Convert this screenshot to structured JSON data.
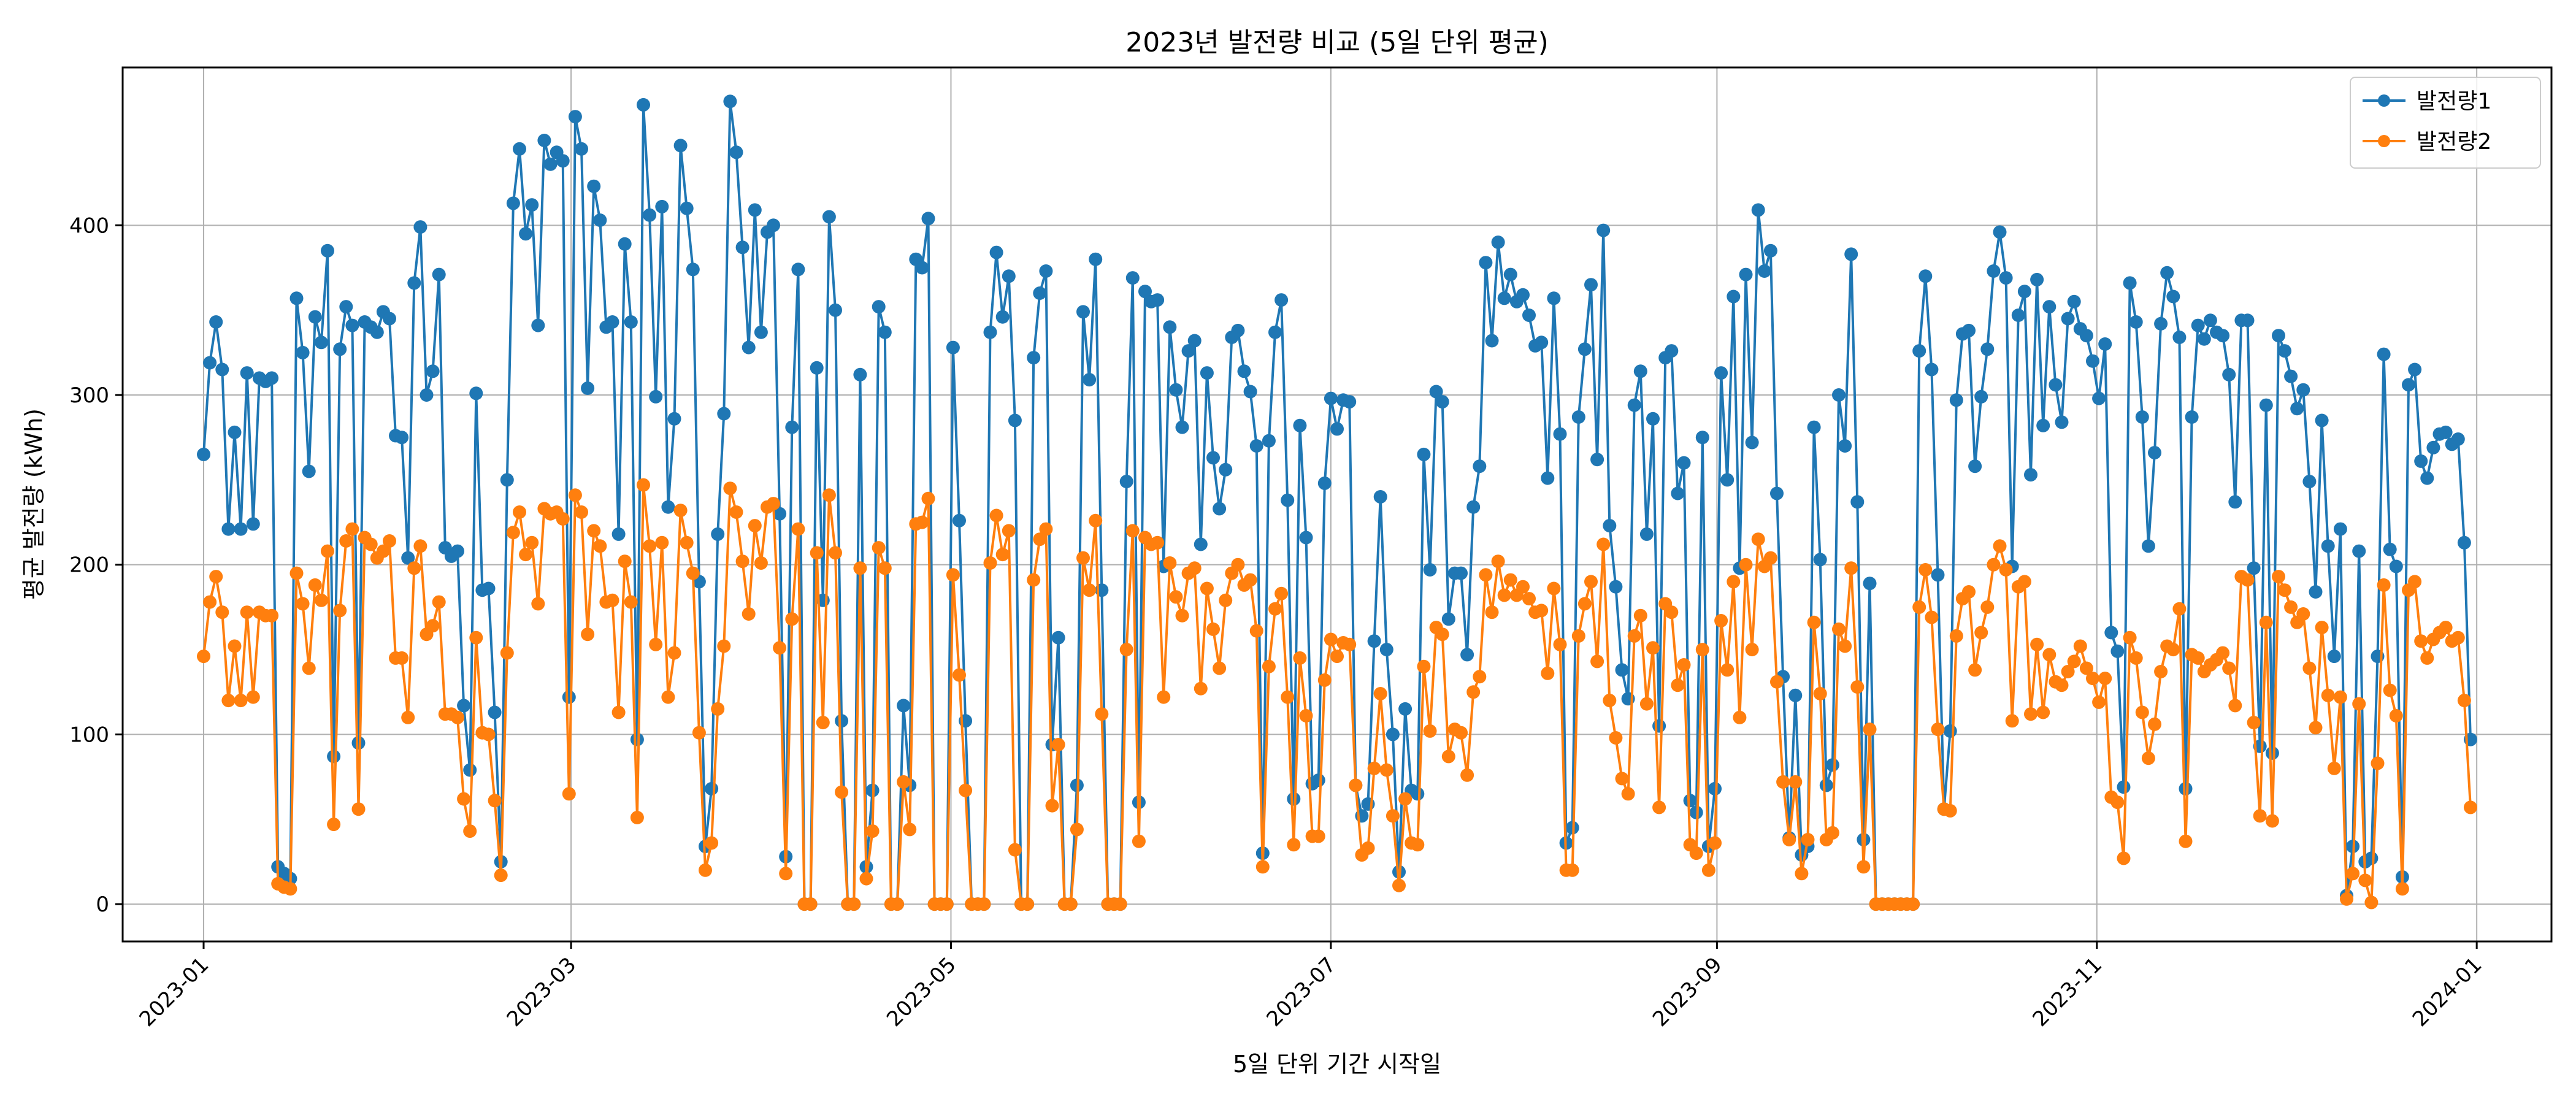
{
  "chart_data": {
    "type": "line",
    "title": "2023년 발전량 비교 (5일 단위 평균)",
    "xlabel": "5일 단위 기간 시작일",
    "ylabel": "평균 발전량 (kWh)",
    "x_start": "2023-01-01",
    "x_end": "2023-12-31",
    "xlim": [
      "2022-12-19",
      "2024-01-13"
    ],
    "ylim": [
      -22,
      493
    ],
    "x_ticks": [
      "2023-01",
      "2023-03",
      "2023-05",
      "2023-07",
      "2023-09",
      "2023-11",
      "2024-01"
    ],
    "y_ticks": [
      0,
      100,
      200,
      300,
      400
    ],
    "grid": true,
    "legend": "top-right",
    "series": [
      {
        "name": "발전량1",
        "color": "#1f77b4",
        "values": [
          265,
          319,
          343,
          315,
          221,
          278,
          221,
          313,
          224,
          310,
          308,
          310,
          22,
          18,
          15,
          357,
          325,
          255,
          346,
          331,
          385,
          87,
          327,
          352,
          341,
          95,
          343,
          340,
          337,
          349,
          345,
          276,
          275,
          204,
          366,
          399,
          300,
          314,
          371,
          210,
          205,
          208,
          117,
          79,
          301,
          185,
          186,
          113,
          25,
          250,
          413,
          445,
          395,
          412,
          341,
          450,
          436,
          443,
          438,
          122,
          464,
          445,
          304,
          423,
          403,
          340,
          343,
          218,
          389,
          343,
          97,
          471,
          406,
          299,
          411,
          234,
          286,
          447,
          410,
          374,
          190,
          34,
          68,
          218,
          289,
          473,
          443,
          387,
          328,
          409,
          337,
          396,
          400,
          230,
          28,
          281,
          374,
          0,
          0,
          316,
          179,
          405,
          350,
          108,
          0,
          0,
          312,
          22,
          67,
          352,
          337,
          0,
          0,
          117,
          70,
          380,
          375,
          404,
          0,
          0,
          0,
          328,
          226,
          108,
          0,
          0,
          0,
          337,
          384,
          346,
          370,
          285,
          0,
          0,
          322,
          360,
          373,
          94,
          157,
          0,
          0,
          70,
          349,
          309,
          380,
          185,
          0,
          0,
          0,
          249,
          369,
          60,
          361,
          355,
          356,
          199,
          340,
          303,
          281,
          326,
          332,
          212,
          313,
          263,
          233,
          256,
          334,
          338,
          314,
          302,
          270,
          30,
          273,
          337,
          356,
          238,
          62,
          282,
          216,
          71,
          73,
          248,
          298,
          280,
          297,
          296,
          70,
          52,
          59,
          155,
          240,
          150,
          100,
          19,
          115,
          67,
          65,
          265,
          197,
          302,
          296,
          168,
          195,
          195,
          147,
          234,
          258,
          378,
          332,
          390,
          357,
          371,
          355,
          359,
          347,
          329,
          331,
          251,
          357,
          277,
          36,
          45,
          287,
          327,
          365,
          262,
          397,
          223,
          187,
          138,
          121,
          294,
          314,
          218,
          286,
          105,
          322,
          326,
          242,
          260,
          61,
          54,
          275,
          34,
          68,
          313,
          250,
          358,
          198,
          371,
          272,
          409,
          373,
          385,
          242,
          134,
          39,
          123,
          29,
          34,
          281,
          203,
          70,
          82,
          300,
          270,
          383,
          237,
          38,
          189,
          0,
          0,
          0,
          0,
          0,
          0,
          0,
          326,
          370,
          315,
          194,
          56,
          102,
          297,
          336,
          338,
          258,
          299,
          327,
          373,
          396,
          369,
          199,
          347,
          361,
          253,
          368,
          282,
          352,
          306,
          284,
          345,
          355,
          339,
          335,
          320,
          298,
          330,
          160,
          149,
          69,
          366,
          343,
          287,
          211,
          266,
          342,
          372,
          358,
          334,
          68,
          287,
          341,
          333,
          344,
          337,
          335,
          312,
          237,
          344,
          344,
          198,
          93,
          294,
          89,
          335,
          326,
          311,
          292,
          303,
          249,
          184,
          285,
          211,
          146,
          221,
          5,
          34,
          208,
          25,
          27,
          146,
          324,
          209,
          199,
          16,
          306,
          315,
          261,
          251,
          269,
          277,
          278,
          271,
          274,
          213,
          97
        ]
      },
      {
        "name": "발전량2",
        "color": "#ff7f0e",
        "values": [
          146,
          178,
          193,
          172,
          120,
          152,
          120,
          172,
          122,
          172,
          170,
          170,
          12,
          10,
          9,
          195,
          177,
          139,
          188,
          179,
          208,
          47,
          173,
          214,
          221,
          56,
          216,
          212,
          204,
          208,
          214,
          145,
          145,
          110,
          198,
          211,
          159,
          164,
          178,
          112,
          112,
          110,
          62,
          43,
          157,
          101,
          100,
          61,
          17,
          148,
          219,
          231,
          206,
          213,
          177,
          233,
          230,
          231,
          227,
          65,
          241,
          231,
          159,
          220,
          211,
          178,
          179,
          113,
          202,
          178,
          51,
          247,
          211,
          153,
          213,
          122,
          148,
          232,
          213,
          195,
          101,
          20,
          36,
          115,
          152,
          245,
          231,
          202,
          171,
          223,
          201,
          234,
          236,
          151,
          18,
          168,
          221,
          0,
          0,
          207,
          107,
          241,
          207,
          66,
          0,
          0,
          198,
          15,
          43,
          210,
          198,
          0,
          0,
          72,
          44,
          224,
          225,
          239,
          0,
          0,
          0,
          194,
          135,
          67,
          0,
          0,
          0,
          201,
          229,
          206,
          220,
          32,
          0,
          0,
          191,
          215,
          221,
          58,
          94,
          0,
          0,
          44,
          204,
          185,
          226,
          112,
          0,
          0,
          0,
          150,
          220,
          37,
          216,
          212,
          213,
          122,
          201,
          181,
          170,
          195,
          198,
          127,
          186,
          162,
          139,
          179,
          195,
          200,
          188,
          191,
          161,
          22,
          140,
          174,
          183,
          122,
          35,
          145,
          111,
          40,
          40,
          132,
          156,
          146,
          154,
          153,
          70,
          29,
          33,
          80,
          124,
          79,
          52,
          11,
          62,
          36,
          35,
          140,
          102,
          163,
          159,
          87,
          103,
          101,
          76,
          125,
          134,
          194,
          172,
          202,
          182,
          191,
          182,
          187,
          180,
          172,
          173,
          136,
          186,
          153,
          20,
          20,
          158,
          177,
          190,
          143,
          212,
          120,
          98,
          74,
          65,
          158,
          170,
          118,
          151,
          57,
          177,
          172,
          129,
          141,
          35,
          30,
          150,
          20,
          36,
          167,
          138,
          190,
          110,
          200,
          150,
          215,
          199,
          204,
          131,
          72,
          38,
          72,
          18,
          38,
          166,
          124,
          38,
          42,
          162,
          152,
          198,
          128,
          22,
          103,
          0,
          0,
          0,
          0,
          0,
          0,
          0,
          175,
          197,
          169,
          103,
          56,
          55,
          158,
          180,
          184,
          138,
          160,
          175,
          200,
          211,
          197,
          108,
          187,
          190,
          112,
          153,
          113,
          147,
          131,
          129,
          137,
          143,
          152,
          139,
          133,
          119,
          133,
          63,
          60,
          27,
          157,
          145,
          113,
          86,
          106,
          137,
          152,
          150,
          174,
          37,
          147,
          145,
          137,
          141,
          144,
          148,
          139,
          117,
          193,
          191,
          107,
          52,
          166,
          49,
          193,
          185,
          175,
          166,
          171,
          139,
          104,
          163,
          123,
          80,
          122,
          3,
          18,
          118,
          14,
          1,
          83,
          188,
          126,
          111,
          9,
          185,
          190,
          155,
          145,
          156,
          160,
          163,
          155,
          157,
          120,
          57
        ]
      }
    ]
  }
}
